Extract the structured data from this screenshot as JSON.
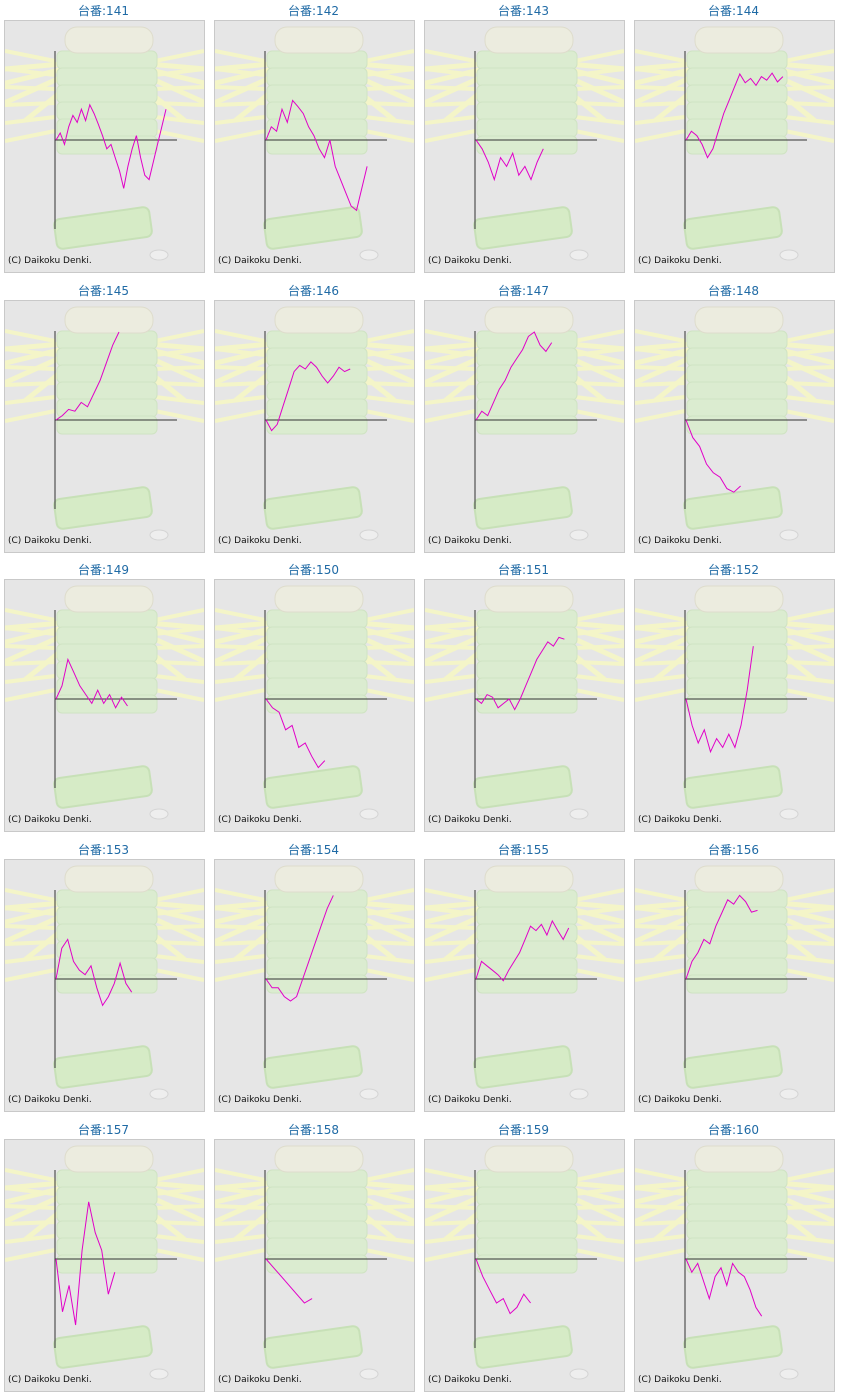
{
  "credit": "(C) Daikoku Denki.",
  "colors": {
    "line": "#e100c8",
    "axis": "#333333",
    "label": "#1f6aa5",
    "panel_bg": "#e6e6e6"
  },
  "chart_data": [
    {
      "type": "line",
      "title": "台番:141",
      "values": [
        0,
        0.08,
        -0.05,
        0.15,
        0.28,
        0.2,
        0.35,
        0.22,
        0.4,
        0.3,
        0.18,
        0.05,
        -0.1,
        -0.05,
        -0.2,
        -0.35,
        -0.55,
        -0.3,
        -0.1,
        0.05,
        -0.2,
        -0.4,
        -0.45,
        -0.25,
        -0.05,
        0.15,
        0.35
      ]
    },
    {
      "type": "line",
      "title": "台番:142",
      "values": [
        0,
        0.15,
        0.1,
        0.35,
        0.2,
        0.45,
        0.38,
        0.3,
        0.15,
        0.05,
        -0.1,
        -0.2,
        0.0,
        -0.3,
        -0.45,
        -0.6,
        -0.75,
        -0.8,
        -0.55,
        -0.3
      ]
    },
    {
      "type": "line",
      "title": "台番:143",
      "values": [
        0,
        -0.1,
        -0.25,
        -0.45,
        -0.2,
        -0.3,
        -0.15,
        -0.4,
        -0.3,
        -0.45,
        -0.25,
        -0.1
      ]
    },
    {
      "type": "line",
      "title": "台番:144",
      "values": [
        0,
        0.1,
        0.05,
        -0.05,
        -0.2,
        -0.1,
        0.1,
        0.3,
        0.45,
        0.6,
        0.75,
        0.65,
        0.7,
        0.62,
        0.72,
        0.68,
        0.76,
        0.66,
        0.72
      ]
    },
    {
      "type": "line",
      "title": "台番:145",
      "values": [
        0,
        0.05,
        0.12,
        0.1,
        0.2,
        0.15,
        0.3,
        0.45,
        0.65,
        0.85,
        1.0
      ]
    },
    {
      "type": "line",
      "title": "台番:146",
      "values": [
        0,
        -0.12,
        -0.05,
        0.15,
        0.35,
        0.55,
        0.62,
        0.58,
        0.66,
        0.6,
        0.5,
        0.42,
        0.5,
        0.6,
        0.55,
        0.58
      ]
    },
    {
      "type": "line",
      "title": "台番:147",
      "values": [
        0,
        0.1,
        0.05,
        0.2,
        0.35,
        0.45,
        0.6,
        0.7,
        0.8,
        0.95,
        1.0,
        0.85,
        0.78,
        0.88
      ]
    },
    {
      "type": "line",
      "title": "台番:148",
      "values": [
        0,
        -0.2,
        -0.3,
        -0.5,
        -0.6,
        -0.65,
        -0.78,
        -0.82,
        -0.75
      ]
    },
    {
      "type": "line",
      "title": "台番:149",
      "values": [
        0,
        0.15,
        0.45,
        0.3,
        0.15,
        0.05,
        -0.05,
        0.1,
        -0.05,
        0.05,
        -0.1,
        0.02,
        -0.08
      ]
    },
    {
      "type": "line",
      "title": "台番:150",
      "values": [
        0,
        -0.1,
        -0.15,
        -0.35,
        -0.3,
        -0.55,
        -0.5,
        -0.65,
        -0.78,
        -0.7
      ]
    },
    {
      "type": "line",
      "title": "台番:151",
      "values": [
        0,
        -0.05,
        0.05,
        0.02,
        -0.1,
        -0.05,
        0.0,
        -0.12,
        0.0,
        0.15,
        0.3,
        0.45,
        0.55,
        0.65,
        0.6,
        0.7,
        0.68
      ]
    },
    {
      "type": "line",
      "title": "台番:152",
      "values": [
        0,
        -0.3,
        -0.5,
        -0.35,
        -0.6,
        -0.45,
        -0.55,
        -0.4,
        -0.55,
        -0.3,
        0.1,
        0.6
      ]
    },
    {
      "type": "line",
      "title": "台番:153",
      "values": [
        0,
        0.35,
        0.45,
        0.2,
        0.1,
        0.05,
        0.15,
        -0.1,
        -0.3,
        -0.2,
        -0.05,
        0.18,
        -0.05,
        -0.15
      ]
    },
    {
      "type": "line",
      "title": "台番:154",
      "values": [
        0,
        -0.1,
        -0.1,
        -0.2,
        -0.25,
        -0.2,
        0.0,
        0.2,
        0.4,
        0.6,
        0.8,
        0.95
      ]
    },
    {
      "type": "line",
      "title": "台番:155",
      "values": [
        0,
        0.2,
        0.15,
        0.1,
        0.05,
        -0.02,
        0.1,
        0.2,
        0.3,
        0.45,
        0.6,
        0.55,
        0.62,
        0.5,
        0.66,
        0.55,
        0.45,
        0.58
      ]
    },
    {
      "type": "line",
      "title": "台番:156",
      "values": [
        0,
        0.2,
        0.3,
        0.45,
        0.4,
        0.6,
        0.75,
        0.9,
        0.85,
        0.95,
        0.88,
        0.76,
        0.78
      ]
    },
    {
      "type": "line",
      "title": "台番:157",
      "values": [
        0,
        -0.6,
        -0.3,
        -0.75,
        0.1,
        0.65,
        0.3,
        0.1,
        -0.4,
        -0.15
      ]
    },
    {
      "type": "line",
      "title": "台番:158",
      "values": [
        0,
        -0.1,
        -0.2,
        -0.3,
        -0.4,
        -0.5,
        -0.45
      ]
    },
    {
      "type": "line",
      "title": "台番:159",
      "values": [
        0,
        -0.2,
        -0.35,
        -0.5,
        -0.45,
        -0.62,
        -0.55,
        -0.4,
        -0.5
      ]
    },
    {
      "type": "line",
      "title": "台番:160",
      "values": [
        0,
        -0.15,
        -0.05,
        -0.25,
        -0.45,
        -0.2,
        -0.1,
        -0.3,
        -0.05,
        -0.15,
        -0.2,
        -0.35,
        -0.55,
        -0.65
      ]
    }
  ]
}
